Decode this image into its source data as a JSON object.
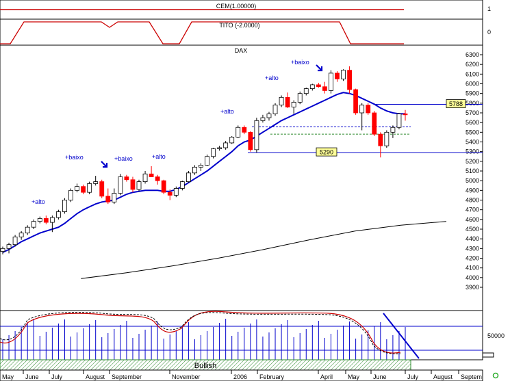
{
  "panels": {
    "cem": {
      "label": "CEM(1.00000)",
      "scale_labels": [
        "1"
      ]
    },
    "tito": {
      "label": "TITO (-2.0000)",
      "scale_labels": [
        "0"
      ]
    },
    "main": {
      "label": "DAX"
    },
    "volume": {
      "scale_labels": [
        "50000"
      ]
    },
    "bullish": {
      "label": "Bullish"
    }
  },
  "colors": {
    "up_candle": "#ffffff",
    "down_candle": "#ff0000",
    "moving_average_fast": "#0000cc",
    "moving_average_slow": "#000000",
    "tito_line": "#cc0000",
    "volume_bars": "#0000cc",
    "bullish_bar": "#2e8b2e",
    "badge": "#ffff99"
  },
  "chart_data": {
    "type": "candlestick",
    "title": "DAX",
    "ylim": [
      3800,
      6330
    ],
    "y_ticks": [
      3900,
      4000,
      4100,
      4200,
      4300,
      4400,
      4500,
      4600,
      4700,
      4800,
      4900,
      5000,
      5100,
      5200,
      5300,
      5400,
      5500,
      5600,
      5700,
      5800,
      5900,
      6000,
      6100,
      6200,
      6300
    ],
    "x_tick_labels": [
      "May",
      "June",
      "July",
      "August",
      "September",
      "November",
      "2006",
      "February",
      "April",
      "May",
      "June",
      "July",
      "August",
      "Septem"
    ],
    "price_levels": [
      {
        "label": "5788",
        "value": 5788
      },
      {
        "label": "5290",
        "value": 5290
      }
    ],
    "annotations": [
      {
        "text": "+alto",
        "near": 4620
      },
      {
        "text": "+baixo",
        "near": 5150
      },
      {
        "text": "+baixo",
        "near": 5150
      },
      {
        "text": "+alto",
        "near": 5150
      },
      {
        "text": "+alto",
        "near": 5660
      },
      {
        "text": "+alto",
        "near": 6030
      },
      {
        "text": "+baixo",
        "near": 6220
      }
    ],
    "candles": [
      {
        "o": 4270,
        "h": 4320,
        "l": 4240,
        "c": 4300
      },
      {
        "o": 4300,
        "h": 4360,
        "l": 4250,
        "c": 4340
      },
      {
        "o": 4340,
        "h": 4440,
        "l": 4320,
        "c": 4420
      },
      {
        "o": 4420,
        "h": 4480,
        "l": 4390,
        "c": 4460
      },
      {
        "o": 4460,
        "h": 4540,
        "l": 4440,
        "c": 4520
      },
      {
        "o": 4520,
        "h": 4600,
        "l": 4500,
        "c": 4580
      },
      {
        "o": 4580,
        "h": 4630,
        "l": 4560,
        "c": 4610
      },
      {
        "o": 4610,
        "h": 4640,
        "l": 4550,
        "c": 4570
      },
      {
        "o": 4570,
        "h": 4640,
        "l": 4470,
        "c": 4620
      },
      {
        "o": 4620,
        "h": 4700,
        "l": 4600,
        "c": 4680
      },
      {
        "o": 4680,
        "h": 4820,
        "l": 4660,
        "c": 4800
      },
      {
        "o": 4800,
        "h": 4920,
        "l": 4780,
        "c": 4900
      },
      {
        "o": 4900,
        "h": 4970,
        "l": 4880,
        "c": 4940
      },
      {
        "o": 4940,
        "h": 4960,
        "l": 4860,
        "c": 4880
      },
      {
        "o": 4880,
        "h": 4990,
        "l": 4860,
        "c": 4970
      },
      {
        "o": 4970,
        "h": 5050,
        "l": 4950,
        "c": 4990
      },
      {
        "o": 4990,
        "h": 5010,
        "l": 4820,
        "c": 4840
      },
      {
        "o": 4840,
        "h": 4920,
        "l": 4760,
        "c": 4780
      },
      {
        "o": 4780,
        "h": 4920,
        "l": 4760,
        "c": 4870
      },
      {
        "o": 4870,
        "h": 5070,
        "l": 4850,
        "c": 5040
      },
      {
        "o": 5040,
        "h": 5060,
        "l": 4990,
        "c": 5010
      },
      {
        "o": 5010,
        "h": 5040,
        "l": 4880,
        "c": 4910
      },
      {
        "o": 4910,
        "h": 5010,
        "l": 4890,
        "c": 4990
      },
      {
        "o": 4990,
        "h": 5100,
        "l": 4970,
        "c": 5070
      },
      {
        "o": 5070,
        "h": 5150,
        "l": 5040,
        "c": 5040
      },
      {
        "o": 5040,
        "h": 5060,
        "l": 4960,
        "c": 5000
      },
      {
        "o": 5000,
        "h": 5010,
        "l": 4860,
        "c": 4880
      },
      {
        "o": 4880,
        "h": 4910,
        "l": 4800,
        "c": 4850
      },
      {
        "o": 4850,
        "h": 4940,
        "l": 4830,
        "c": 4920
      },
      {
        "o": 4920,
        "h": 5000,
        "l": 4900,
        "c": 4990
      },
      {
        "o": 4990,
        "h": 5100,
        "l": 4980,
        "c": 5080
      },
      {
        "o": 5080,
        "h": 5160,
        "l": 5060,
        "c": 5140
      },
      {
        "o": 5140,
        "h": 5180,
        "l": 5100,
        "c": 5160
      },
      {
        "o": 5160,
        "h": 5270,
        "l": 5150,
        "c": 5250
      },
      {
        "o": 5250,
        "h": 5340,
        "l": 5230,
        "c": 5330
      },
      {
        "o": 5330,
        "h": 5360,
        "l": 5310,
        "c": 5340
      },
      {
        "o": 5340,
        "h": 5410,
        "l": 5320,
        "c": 5390
      },
      {
        "o": 5390,
        "h": 5460,
        "l": 5380,
        "c": 5450
      },
      {
        "o": 5450,
        "h": 5570,
        "l": 5440,
        "c": 5550
      },
      {
        "o": 5550,
        "h": 5570,
        "l": 5480,
        "c": 5500
      },
      {
        "o": 5500,
        "h": 5510,
        "l": 5300,
        "c": 5320
      },
      {
        "o": 5320,
        "h": 5650,
        "l": 5290,
        "c": 5620
      },
      {
        "o": 5620,
        "h": 5680,
        "l": 5600,
        "c": 5650
      },
      {
        "o": 5650,
        "h": 5710,
        "l": 5620,
        "c": 5690
      },
      {
        "o": 5690,
        "h": 5800,
        "l": 5670,
        "c": 5780
      },
      {
        "o": 5780,
        "h": 5880,
        "l": 5760,
        "c": 5860
      },
      {
        "o": 5860,
        "h": 5910,
        "l": 5750,
        "c": 5760
      },
      {
        "o": 5760,
        "h": 5830,
        "l": 5690,
        "c": 5810
      },
      {
        "o": 5810,
        "h": 5920,
        "l": 5790,
        "c": 5900
      },
      {
        "o": 5900,
        "h": 5960,
        "l": 5880,
        "c": 5950
      },
      {
        "o": 5950,
        "h": 6000,
        "l": 5930,
        "c": 5990
      },
      {
        "o": 5990,
        "h": 6010,
        "l": 5960,
        "c": 5970
      },
      {
        "o": 5970,
        "h": 6020,
        "l": 5900,
        "c": 5930
      },
      {
        "o": 5930,
        "h": 6140,
        "l": 5900,
        "c": 6110
      },
      {
        "o": 6110,
        "h": 6130,
        "l": 6020,
        "c": 6050
      },
      {
        "o": 6050,
        "h": 6150,
        "l": 6030,
        "c": 6140
      },
      {
        "o": 6140,
        "h": 6180,
        "l": 5900,
        "c": 5940
      },
      {
        "o": 5940,
        "h": 5950,
        "l": 5680,
        "c": 5700
      },
      {
        "o": 5700,
        "h": 5800,
        "l": 5520,
        "c": 5780
      },
      {
        "o": 5780,
        "h": 5800,
        "l": 5680,
        "c": 5700
      },
      {
        "o": 5700,
        "h": 5720,
        "l": 5460,
        "c": 5480
      },
      {
        "o": 5480,
        "h": 5500,
        "l": 5240,
        "c": 5360
      },
      {
        "o": 5360,
        "h": 5520,
        "l": 5340,
        "c": 5500
      },
      {
        "o": 5500,
        "h": 5570,
        "l": 5440,
        "c": 5550
      },
      {
        "o": 5550,
        "h": 5700,
        "l": 5530,
        "c": 5690
      },
      {
        "o": 5690,
        "h": 5730,
        "l": 5620,
        "c": 5680
      }
    ],
    "ma_fast": [
      4260,
      4290,
      4330,
      4370,
      4400,
      4430,
      4460,
      4480,
      4500,
      4520,
      4560,
      4610,
      4660,
      4700,
      4730,
      4760,
      4780,
      4790,
      4800,
      4830,
      4860,
      4880,
      4890,
      4900,
      4900,
      4900,
      4890,
      4890,
      4910,
      4940,
      4980,
      5020,
      5060,
      5100,
      5150,
      5200,
      5250,
      5300,
      5360,
      5400,
      5420,
      5460,
      5500,
      5540,
      5580,
      5620,
      5650,
      5680,
      5710,
      5740,
      5770,
      5800,
      5830,
      5860,
      5890,
      5910,
      5900,
      5880,
      5850,
      5820,
      5790,
      5750,
      5720,
      5700,
      5690,
      5690
    ],
    "ma_slow": {
      "x_start_index": 6,
      "x_end_index": 65,
      "values": [
        3990,
        4050,
        4120,
        4200,
        4290,
        4390,
        4480,
        4540,
        4580
      ]
    }
  }
}
